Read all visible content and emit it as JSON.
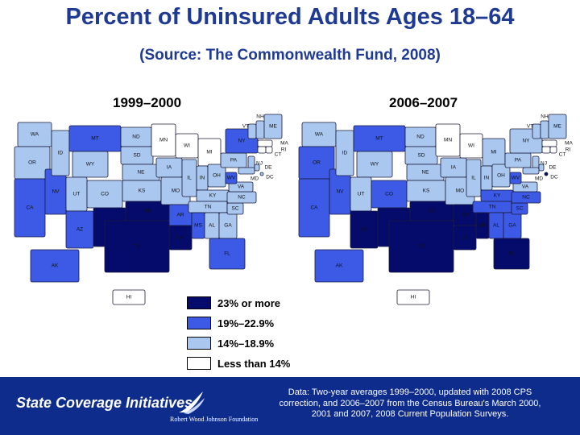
{
  "title": "Percent of Uninsured Adults Ages 18–64",
  "subtitle": "(Source: The Commonwealth Fund, 2008)",
  "colors": {
    "cat1": "#050b6b",
    "cat2": "#3c5ae6",
    "cat3": "#a9c7ef",
    "cat4": "#ffffff",
    "brand": "#0d2c8c",
    "title": "#1f3a93"
  },
  "legend": [
    {
      "label": "23% or more",
      "key": "cat1"
    },
    {
      "label": "19%–22.9%",
      "key": "cat2"
    },
    {
      "label": "14%–18.9%",
      "key": "cat3"
    },
    {
      "label": "Less than 14%",
      "key": "cat4"
    }
  ],
  "maps": [
    {
      "period": "1999–2000",
      "categories": {
        "WA": "cat3",
        "OR": "cat3",
        "CA": "cat2",
        "NV": "cat2",
        "ID": "cat3",
        "MT": "cat2",
        "WY": "cat3",
        "UT": "cat3",
        "AZ": "cat2",
        "CO": "cat3",
        "NM": "cat1",
        "TX": "cat1",
        "OK": "cat1",
        "KS": "cat3",
        "NE": "cat3",
        "SD": "cat3",
        "ND": "cat3",
        "MN": "cat4",
        "IA": "cat3",
        "MO": "cat3",
        "AR": "cat2",
        "LA": "cat1",
        "WI": "cat4",
        "IL": "cat3",
        "IN": "cat3",
        "MI": "cat4",
        "OH": "cat3",
        "KY": "cat3",
        "TN": "cat3",
        "MS": "cat2",
        "AL": "cat3",
        "GA": "cat3",
        "FL": "cat2",
        "SC": "cat3",
        "NC": "cat3",
        "VA": "cat3",
        "WV": "cat2",
        "PA": "cat3",
        "NY": "cat2",
        "VT": "cat3",
        "NH": "cat3",
        "ME": "cat3",
        "MA": "cat4",
        "CT": "cat4",
        "RI": "cat4",
        "NJ": "cat3",
        "DE": "cat3",
        "MD": "cat3",
        "DC": "cat3",
        "AK": "cat2",
        "HI": "cat4"
      }
    },
    {
      "period": "2006–2007",
      "categories": {
        "WA": "cat3",
        "OR": "cat2",
        "CA": "cat2",
        "NV": "cat2",
        "ID": "cat3",
        "MT": "cat2",
        "WY": "cat3",
        "UT": "cat3",
        "AZ": "cat1",
        "CO": "cat2",
        "NM": "cat1",
        "TX": "cat1",
        "OK": "cat1",
        "KS": "cat3",
        "NE": "cat3",
        "SD": "cat3",
        "ND": "cat3",
        "MN": "cat4",
        "IA": "cat3",
        "MO": "cat3",
        "AR": "cat1",
        "LA": "cat1",
        "WI": "cat4",
        "IL": "cat3",
        "IN": "cat3",
        "MI": "cat3",
        "OH": "cat3",
        "KY": "cat2",
        "TN": "cat2",
        "MS": "cat1",
        "AL": "cat2",
        "GA": "cat2",
        "FL": "cat1",
        "SC": "cat2",
        "NC": "cat2",
        "VA": "cat3",
        "WV": "cat2",
        "PA": "cat3",
        "NY": "cat3",
        "VT": "cat3",
        "NH": "cat3",
        "ME": "cat3",
        "MA": "cat4",
        "CT": "cat4",
        "RI": "cat4",
        "NJ": "cat3",
        "DE": "cat3",
        "MD": "cat3",
        "DC": "cat1",
        "AK": "cat2",
        "HI": "cat4"
      }
    }
  ],
  "footer": {
    "org": "State Coverage Initiatives",
    "foundation": "Robert Wood Johnson Foundation",
    "note_lines": [
      "Data: Two-year averages 1999–2000, updated with 2008 CPS",
      "correction, and 2006–2007 from the Census Bureau's March 2000,",
      "2001 and 2007, 2008 Current Population Surveys."
    ]
  }
}
